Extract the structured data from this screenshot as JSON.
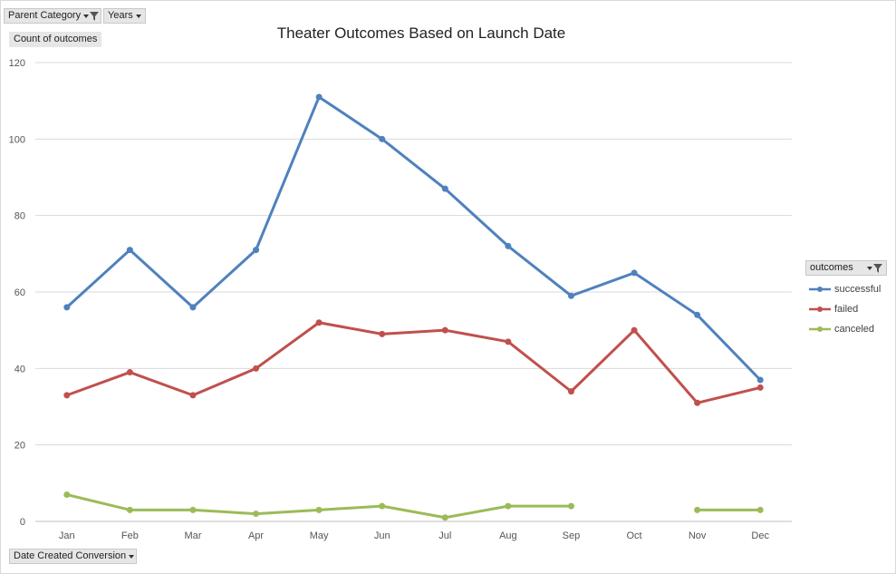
{
  "filters": {
    "parent_category": "Parent Category",
    "years": "Years",
    "value_field": "Count of outcomes",
    "axis_field": "Date Created Conversion"
  },
  "legend_title": "outcomes",
  "colors": {
    "successful": "#4f81bd",
    "failed": "#c0504d",
    "canceled": "#9bbb59"
  },
  "chart_data": {
    "type": "line",
    "title": "Theater Outcomes Based on Launch Date",
    "xlabel": "Date Created Conversion",
    "ylabel": "Count of outcomes",
    "categories": [
      "Jan",
      "Feb",
      "Mar",
      "Apr",
      "May",
      "Jun",
      "Jul",
      "Aug",
      "Sep",
      "Oct",
      "Nov",
      "Dec"
    ],
    "ylim": [
      0,
      120
    ],
    "yticks": [
      0,
      20,
      40,
      60,
      80,
      100,
      120
    ],
    "grid": true,
    "legend": "right",
    "series": [
      {
        "name": "successful",
        "values": [
          56,
          71,
          56,
          71,
          111,
          100,
          87,
          72,
          59,
          65,
          54,
          37
        ]
      },
      {
        "name": "failed",
        "values": [
          33,
          39,
          33,
          40,
          52,
          49,
          50,
          47,
          34,
          50,
          31,
          35
        ]
      },
      {
        "name": "canceled",
        "values": [
          7,
          3,
          3,
          2,
          3,
          4,
          1,
          4,
          4,
          null,
          3,
          3
        ]
      }
    ]
  }
}
